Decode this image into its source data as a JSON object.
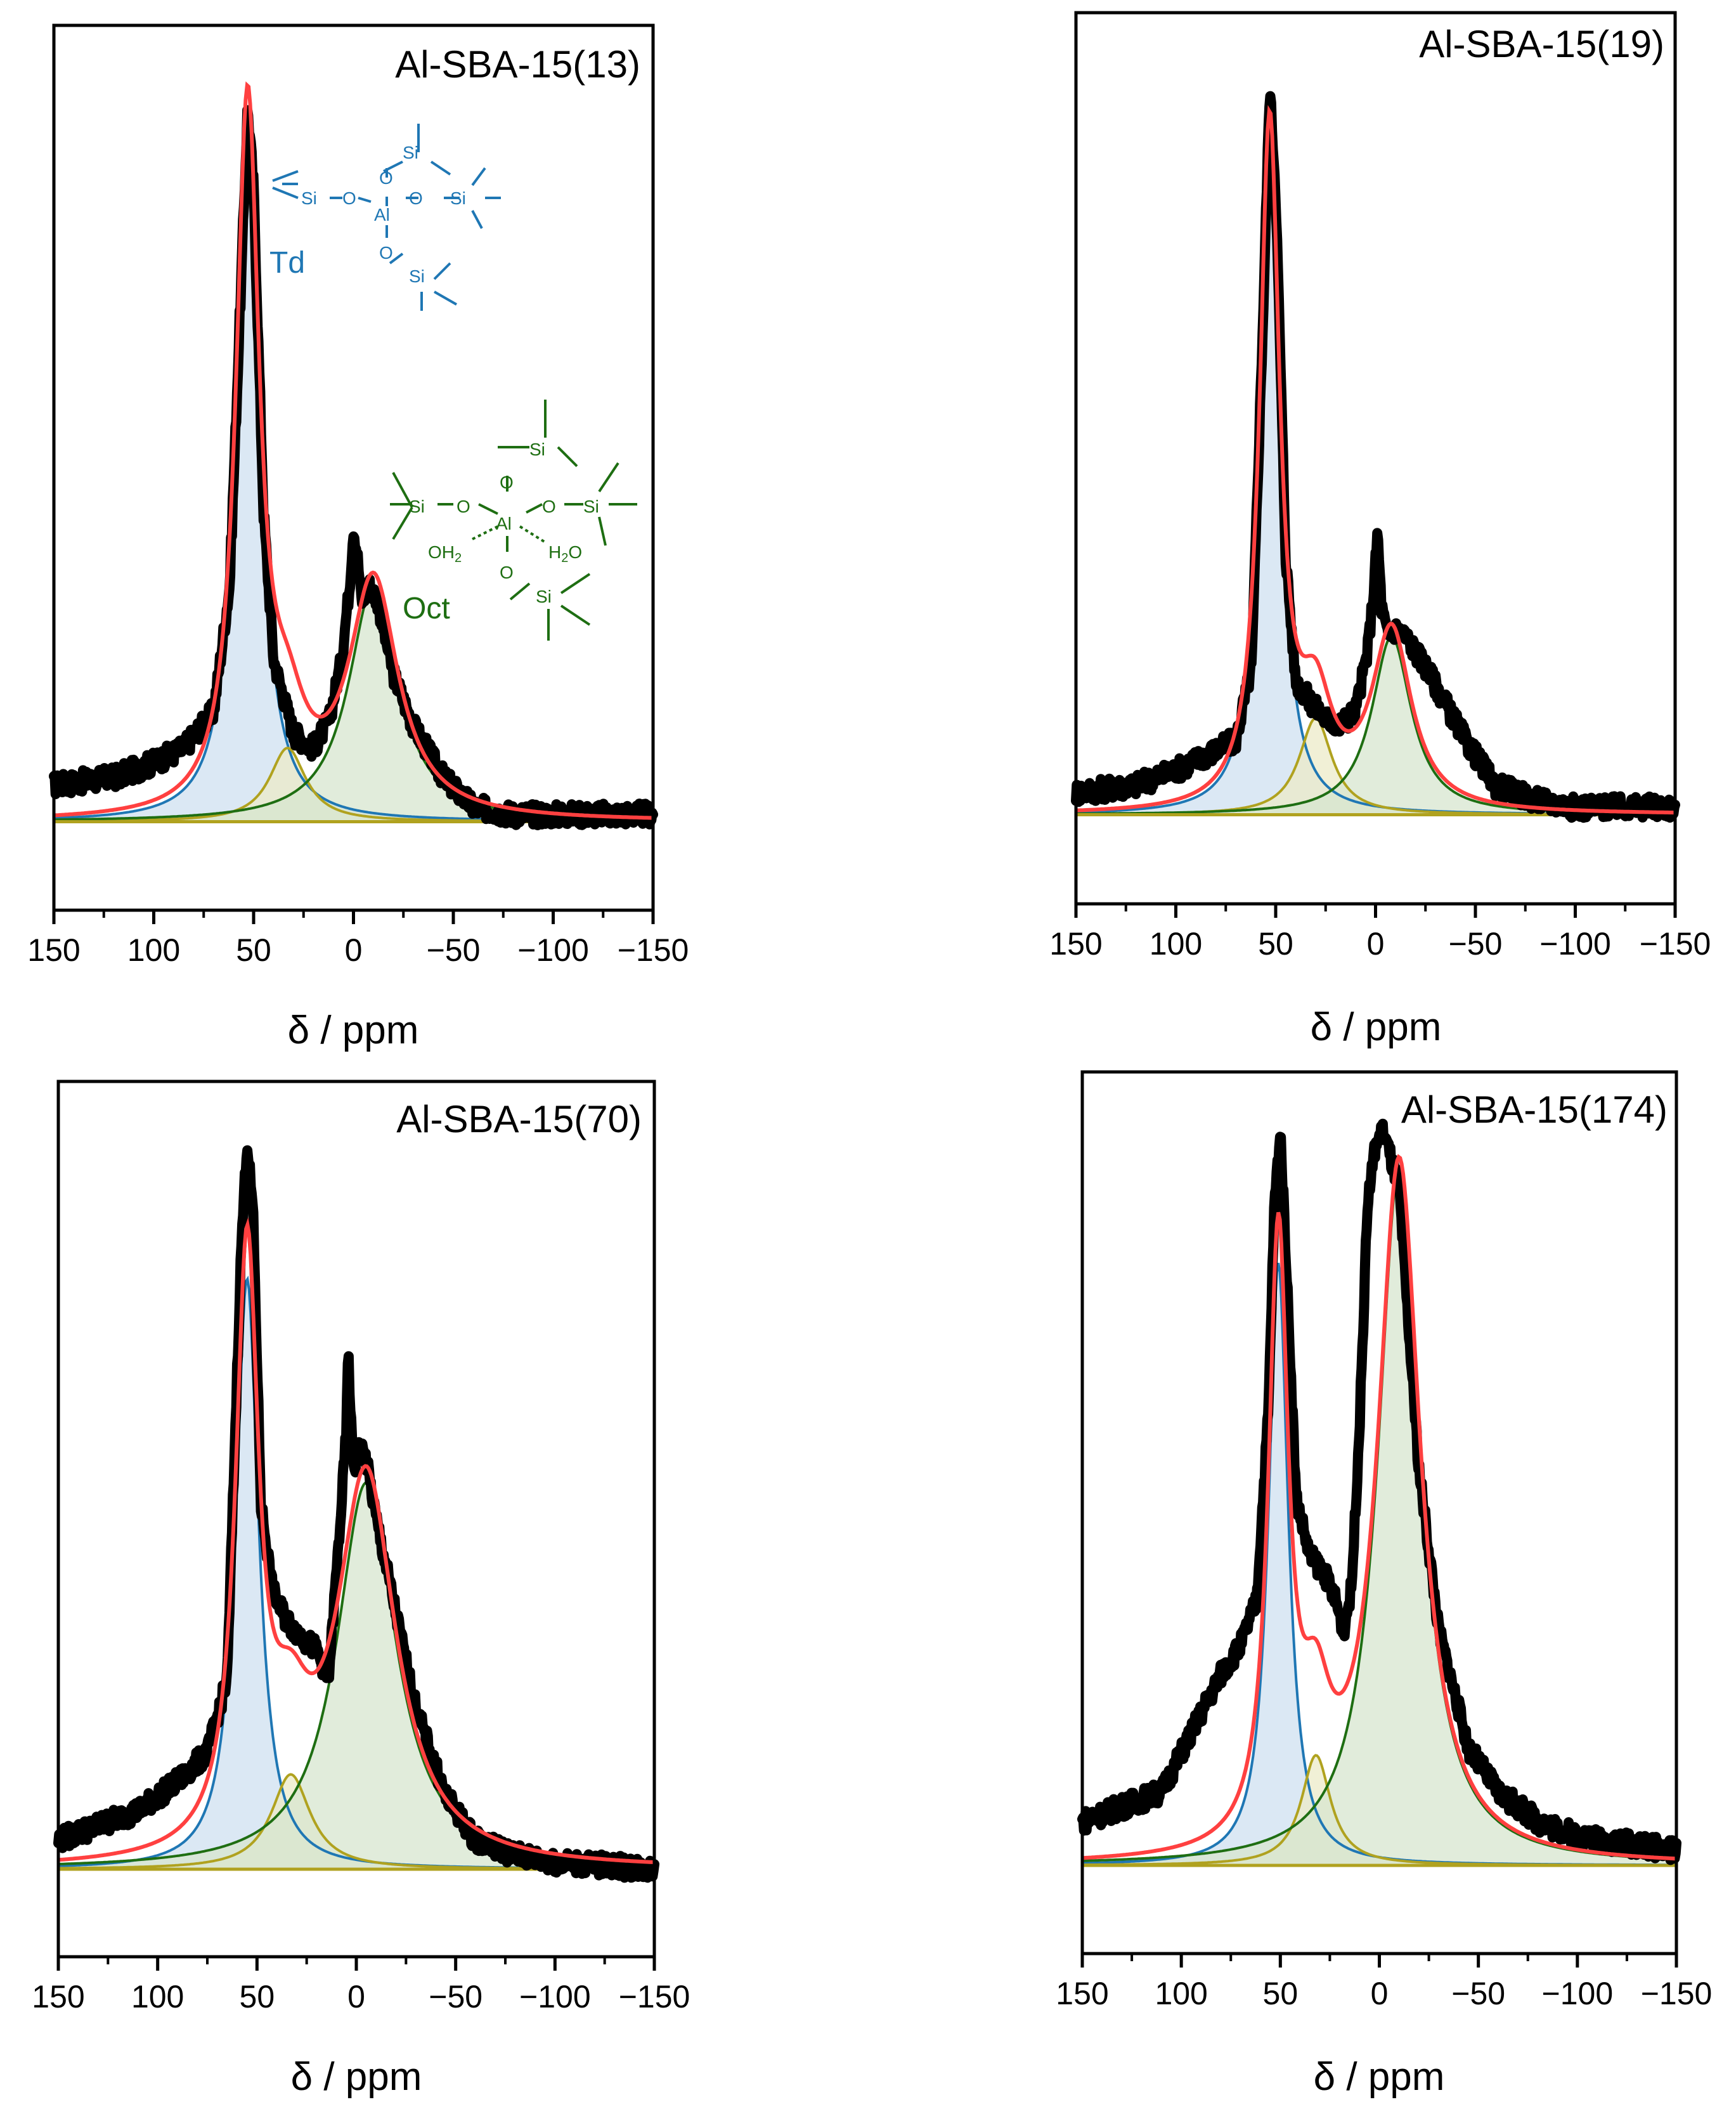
{
  "colors": {
    "experimental": "#000000",
    "fit_sum": "#ff4040",
    "td": "#1f77b4",
    "td_fill": "#cfe0f0",
    "intermediate": "#b0a21f",
    "intermediate_fill": "#ecebc8",
    "oct": "#1e6e12",
    "oct_fill": "#d7e6cf"
  },
  "structures": {
    "td": {
      "label": "Td",
      "si": "Si",
      "o": "O",
      "al": "Al"
    },
    "oct": {
      "label": "Oct",
      "si": "Si",
      "o": "O",
      "al": "Al",
      "oh2": "OH",
      "h2o_h": "H",
      "h2o_o": "O",
      "sub2": "2"
    }
  },
  "chart_data": [
    {
      "type": "line",
      "title": "Al-SBA-15(13)",
      "xlabel": "δ / ppm",
      "ylabel": "",
      "xlim": [
        150,
        -150
      ],
      "x_ticks": [
        150,
        100,
        50,
        0,
        -50,
        -100,
        -150
      ],
      "x_tick_labels": [
        "150",
        "100",
        "50",
        "0",
        "−50",
        "−100",
        "−150"
      ],
      "ylim": [
        -0.12,
        1.08
      ],
      "grid": false,
      "annotations": [
        "Td",
        "Oct"
      ],
      "components": [
        {
          "name": "Td",
          "center": 53,
          "height": 0.96,
          "width": 7
        },
        {
          "name": "intermediate",
          "center": 33,
          "height": 0.1,
          "width": 11
        },
        {
          "name": "Oct",
          "center": -10,
          "height": 0.32,
          "width": 15
        }
      ],
      "baseline": 0.0,
      "experimental": {
        "x": [
          150,
          120,
          100,
          85,
          70,
          62,
          56,
          53,
          50,
          45,
          40,
          30,
          20,
          12,
          6,
          2,
          0,
          -2,
          -4,
          -8,
          -12,
          -20,
          -30,
          -45,
          -60,
          -80,
          -100,
          -150
        ],
        "y": [
          0.05,
          0.06,
          0.08,
          0.1,
          0.15,
          0.32,
          0.75,
          0.97,
          0.86,
          0.42,
          0.22,
          0.12,
          0.1,
          0.14,
          0.22,
          0.32,
          0.4,
          0.36,
          0.3,
          0.32,
          0.3,
          0.2,
          0.13,
          0.06,
          0.02,
          0.01,
          0.01,
          0.01
        ]
      }
    },
    {
      "type": "line",
      "title": "Al-SBA-15(19)",
      "xlabel": "δ / ppm",
      "ylabel": "",
      "xlim": [
        150,
        -150
      ],
      "x_ticks": [
        150,
        100,
        50,
        0,
        -50,
        -100,
        -150
      ],
      "x_tick_labels": [
        "150",
        "100",
        "50",
        "0",
        "−50",
        "−100",
        "−150"
      ],
      "ylim": [
        -0.12,
        1.08
      ],
      "grid": false,
      "annotations": [],
      "components": [
        {
          "name": "Td",
          "center": 53,
          "height": 0.92,
          "width": 6
        },
        {
          "name": "intermediate",
          "center": 30,
          "height": 0.13,
          "width": 10
        },
        {
          "name": "Oct",
          "center": -8,
          "height": 0.24,
          "width": 12
        }
      ],
      "baseline": 0.0,
      "experimental": {
        "x": [
          150,
          120,
          100,
          85,
          70,
          62,
          56,
          53,
          50,
          45,
          40,
          32,
          25,
          18,
          10,
          4,
          1,
          -1,
          -3,
          -6,
          -10,
          -15,
          -25,
          -35,
          -45,
          -60,
          -80,
          -100,
          -150
        ],
        "y": [
          0.03,
          0.04,
          0.06,
          0.08,
          0.1,
          0.2,
          0.7,
          0.98,
          0.84,
          0.35,
          0.18,
          0.15,
          0.13,
          0.12,
          0.14,
          0.22,
          0.3,
          0.38,
          0.28,
          0.24,
          0.25,
          0.24,
          0.2,
          0.15,
          0.1,
          0.04,
          0.02,
          0.01,
          0.01
        ]
      }
    },
    {
      "type": "line",
      "title": "Al-SBA-15(70)",
      "xlabel": "δ / ppm",
      "ylabel": "",
      "xlim": [
        150,
        -150
      ],
      "x_ticks": [
        150,
        100,
        50,
        0,
        -50,
        -100,
        -150
      ],
      "x_tick_labels": [
        "150",
        "100",
        "50",
        "0",
        "−50",
        "−100",
        "−150"
      ],
      "ylim": [
        -0.12,
        1.08
      ],
      "grid": false,
      "annotations": [],
      "components": [
        {
          "name": "Td",
          "center": 55,
          "height": 0.81,
          "width": 7
        },
        {
          "name": "intermediate",
          "center": 33,
          "height": 0.13,
          "width": 12
        },
        {
          "name": "Oct",
          "center": -5,
          "height": 0.53,
          "width": 18
        }
      ],
      "baseline": 0.0,
      "experimental": {
        "x": [
          150,
          130,
          110,
          90,
          75,
          65,
          58,
          55,
          52,
          48,
          42,
          35,
          28,
          20,
          14,
          8,
          5,
          4,
          3,
          1,
          -2,
          -5,
          -10,
          -20,
          -30,
          -45,
          -60,
          -80,
          -100,
          -150
        ],
        "y": [
          0.04,
          0.06,
          0.08,
          0.12,
          0.16,
          0.26,
          0.85,
          1.0,
          0.9,
          0.5,
          0.38,
          0.34,
          0.32,
          0.3,
          0.26,
          0.48,
          0.6,
          0.72,
          0.62,
          0.55,
          0.58,
          0.56,
          0.48,
          0.35,
          0.22,
          0.1,
          0.04,
          0.02,
          0.01,
          0.0
        ]
      }
    },
    {
      "type": "line",
      "title": "Al-SBA-15(174)",
      "xlabel": "δ / ppm",
      "ylabel": "",
      "xlim": [
        150,
        -150
      ],
      "x_ticks": [
        150,
        100,
        50,
        0,
        -50,
        -100,
        -150
      ],
      "x_tick_labels": [
        "150",
        "100",
        "50",
        "0",
        "−50",
        "−100",
        "−150"
      ],
      "ylim": [
        -0.12,
        1.08
      ],
      "grid": false,
      "annotations": [],
      "components": [
        {
          "name": "Td",
          "center": 51,
          "height": 0.82,
          "width": 6
        },
        {
          "name": "intermediate",
          "center": 32,
          "height": 0.15,
          "width": 9
        },
        {
          "name": "Oct",
          "center": -10,
          "height": 0.95,
          "width": 13
        }
      ],
      "baseline": 0.0,
      "experimental": {
        "x": [
          150,
          130,
          110,
          95,
          80,
          70,
          62,
          56,
          53,
          50,
          47,
          42,
          35,
          28,
          22,
          18,
          14,
          10,
          6,
          2,
          -2,
          -6,
          -10,
          -14,
          -20,
          -30,
          -45,
          -60,
          -80,
          -100,
          -150
        ],
        "y": [
          0.06,
          0.08,
          0.1,
          0.18,
          0.26,
          0.3,
          0.36,
          0.62,
          0.9,
          1.0,
          0.82,
          0.5,
          0.42,
          0.4,
          0.36,
          0.32,
          0.38,
          0.6,
          0.9,
          0.98,
          1.0,
          0.96,
          0.92,
          0.76,
          0.54,
          0.32,
          0.16,
          0.1,
          0.06,
          0.04,
          0.02
        ]
      }
    }
  ]
}
